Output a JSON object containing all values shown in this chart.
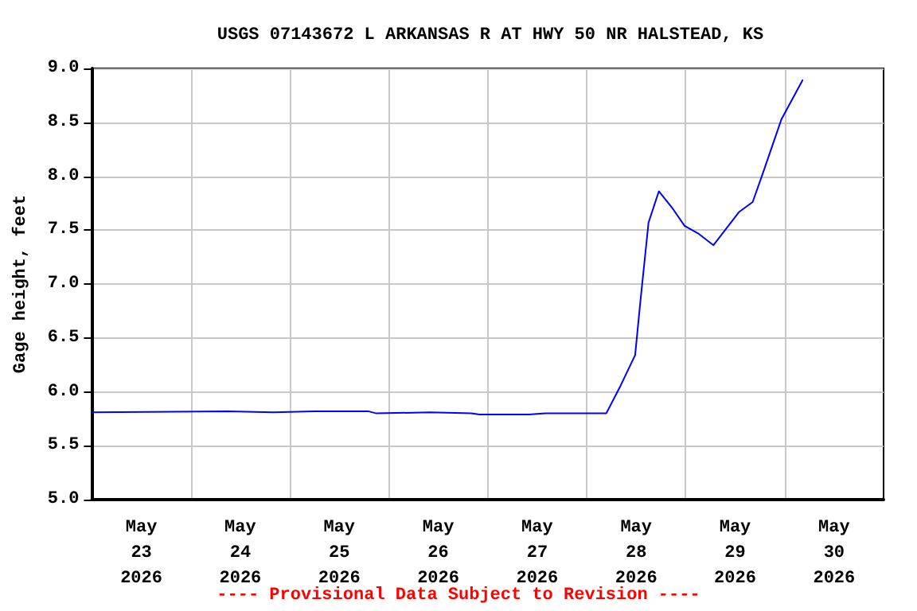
{
  "chart_data": {
    "type": "line",
    "title": "USGS 07143672 L ARKANSAS R AT HWY 50 NR HALSTEAD, KS",
    "ylabel": "Gage height, feet",
    "annotations": [
      "---- Provisional Data Subject to Revision ----"
    ],
    "series": [
      {
        "color": "#0000ff",
        "x": [
          "2026-05-23T00:00",
          "2026-05-24T09:00",
          "2026-05-24T20:00",
          "2026-05-25T06:00",
          "2026-05-25T19:00",
          "2026-05-25T21:00",
          "2026-05-26T10:00",
          "2026-05-26T20:00",
          "2026-05-26T22:00",
          "2026-05-27T10:00",
          "2026-05-27T14:00",
          "2026-05-28T04:45",
          "2026-05-28T08:00",
          "2026-05-28T11:45",
          "2026-05-28T13:00",
          "2026-05-28T15:00",
          "2026-05-28T17:30",
          "2026-05-28T20:40",
          "2026-05-28T23:45",
          "2026-05-29T03:00",
          "2026-05-29T06:45",
          "2026-05-29T13:00",
          "2026-05-29T16:15",
          "2026-05-29T18:45",
          "2026-05-29T23:15",
          "2026-05-30T04:20"
        ],
        "values": [
          5.81,
          5.82,
          5.81,
          5.82,
          5.82,
          5.8,
          5.81,
          5.8,
          5.79,
          5.79,
          5.8,
          5.8,
          6.04,
          6.34,
          6.83,
          7.57,
          7.86,
          7.71,
          7.54,
          7.47,
          7.36,
          7.67,
          7.76,
          8.03,
          8.53,
          8.89
        ]
      }
    ],
    "xlim": [
      "2026-05-23T00:00",
      "2026-05-31T00:00"
    ],
    "xticks": [
      {
        "value": "2026-05-23T12:00",
        "label": "May\n23\n2026"
      },
      {
        "value": "2026-05-24T12:00",
        "label": "May\n24\n2026"
      },
      {
        "value": "2026-05-25T12:00",
        "label": "May\n25\n2026"
      },
      {
        "value": "2026-05-26T12:00",
        "label": "May\n26\n2026"
      },
      {
        "value": "2026-05-27T12:00",
        "label": "May\n27\n2026"
      },
      {
        "value": "2026-05-28T12:00",
        "label": "May\n28\n2026"
      },
      {
        "value": "2026-05-29T12:00",
        "label": "May\n29\n2026"
      },
      {
        "value": "2026-05-30T12:00",
        "label": "May\n30\n2026"
      },
      {
        "value": "2026-05-24T00:00",
        "label": null
      },
      {
        "value": "2026-05-25T00:00",
        "label": null
      },
      {
        "value": "2026-05-26T00:00",
        "label": null
      },
      {
        "value": "2026-05-27T00:00",
        "label": null
      },
      {
        "value": "2026-05-28T00:00",
        "label": null
      },
      {
        "value": "2026-05-29T00:00",
        "label": null
      },
      {
        "value": "2026-05-30T00:00",
        "label": null
      }
    ],
    "ylim": [
      5,
      9
    ],
    "yticks": [
      {
        "value": 5,
        "label": "5.0"
      },
      {
        "value": 5.5,
        "label": "5.5"
      },
      {
        "value": 6,
        "label": "6.0"
      },
      {
        "value": 6.5,
        "label": "6.5"
      },
      {
        "value": 7,
        "label": "7.0"
      },
      {
        "value": 7.5,
        "label": "7.5"
      },
      {
        "value": 8,
        "label": "8.0"
      },
      {
        "value": 8.5,
        "label": "8.5"
      },
      {
        "value": 9,
        "label": "9.0"
      }
    ],
    "grid": true,
    "marker": "none",
    "line_style": "solid"
  }
}
